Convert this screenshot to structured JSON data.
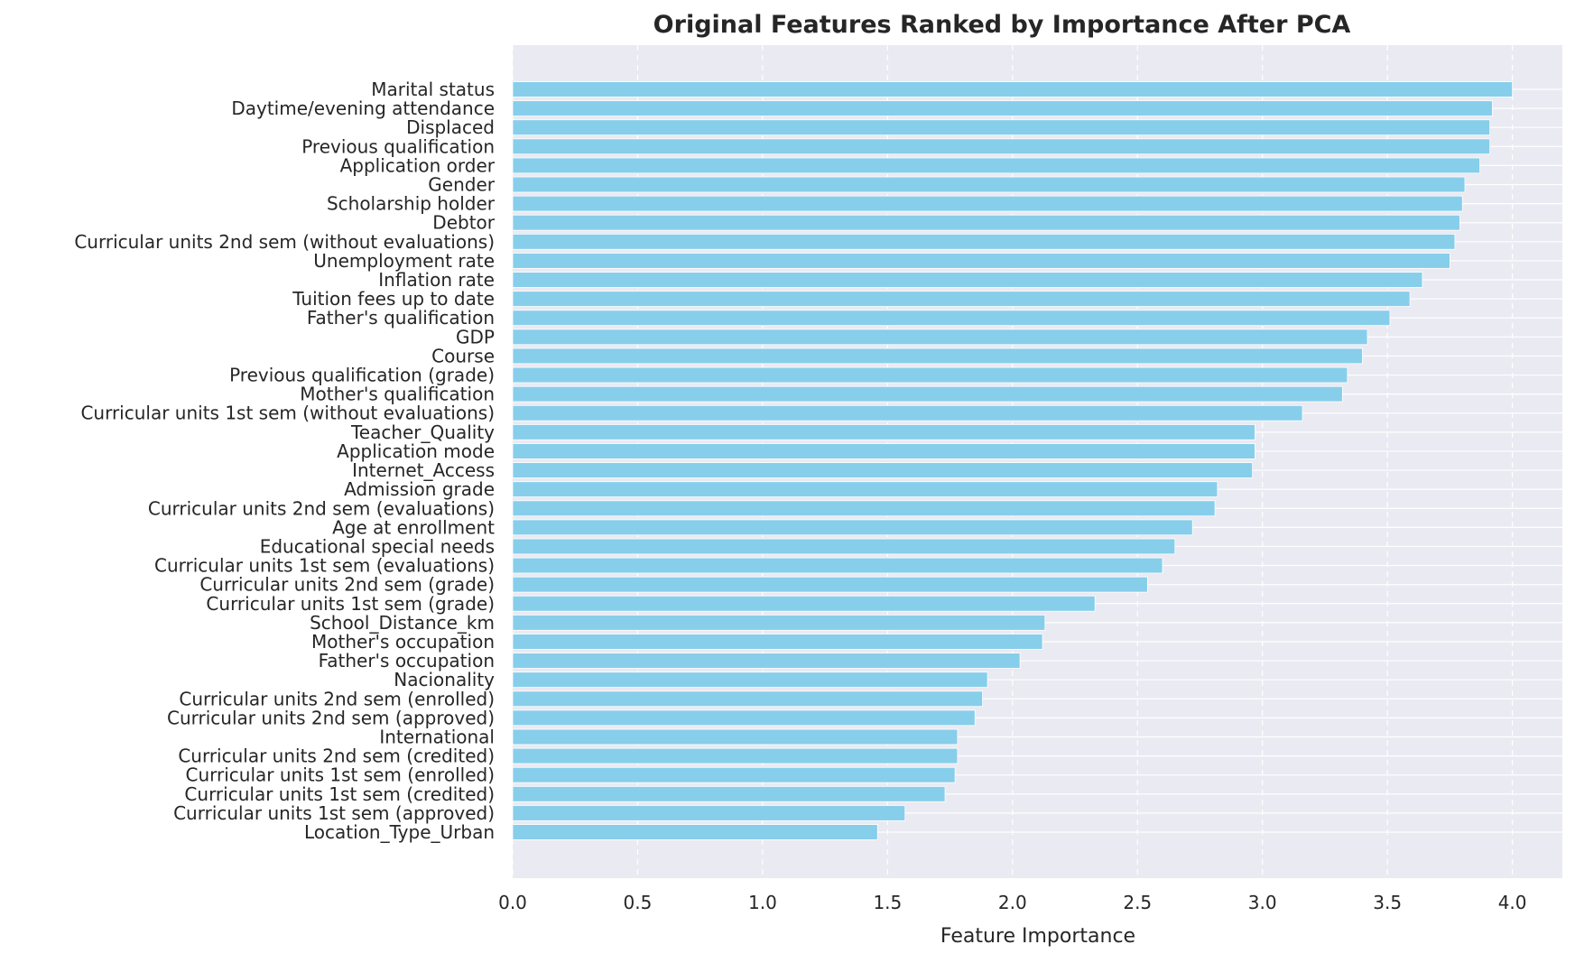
{
  "chart_data": {
    "type": "bar",
    "orientation": "horizontal",
    "title": "Original Features Ranked by Importance After PCA",
    "xlabel": "Feature Importance",
    "ylabel": "",
    "xlim": [
      0,
      4.2
    ],
    "xticks": [
      "0.0",
      "0.5",
      "1.0",
      "1.5",
      "2.0",
      "2.5",
      "3.0",
      "3.5",
      "4.0"
    ],
    "grid": true,
    "bar_color": "#87CEEB",
    "background_color": "#EAEAF2",
    "categories": [
      "Marital status",
      "Daytime/evening attendance\t",
      "Displaced",
      "Previous qualification",
      "Application order",
      "Gender",
      "Scholarship holder",
      "Debtor",
      "Curricular units 2nd sem (without evaluations)",
      "Unemployment rate",
      "Inflation rate",
      "Tuition fees up to date",
      "Father's qualification",
      "GDP",
      "Course",
      "Previous qualification (grade)",
      "Mother's qualification",
      "Curricular units 1st sem (without evaluations)",
      "Teacher_Quality",
      "Application mode",
      "Internet_Access",
      "Admission grade",
      "Curricular units 2nd sem (evaluations)",
      "Age at enrollment",
      "Educational special needs",
      "Curricular units 1st sem (evaluations)",
      "Curricular units 2nd sem (grade)",
      "Curricular units 1st sem (grade)",
      "School_Distance_km",
      "Mother's occupation",
      "Father's occupation",
      "Nacionality",
      "Curricular units 2nd sem (enrolled)",
      "Curricular units 2nd sem (approved)",
      "International",
      "Curricular units 2nd sem (credited)",
      "Curricular units 1st sem (enrolled)",
      "Curricular units 1st sem (credited)",
      "Curricular units 1st sem (approved)",
      "Location_Type_Urban"
    ],
    "values": [
      4.0,
      3.92,
      3.91,
      3.91,
      3.87,
      3.81,
      3.8,
      3.79,
      3.77,
      3.75,
      3.64,
      3.59,
      3.51,
      3.42,
      3.4,
      3.34,
      3.32,
      3.16,
      2.97,
      2.97,
      2.96,
      2.82,
      2.81,
      2.72,
      2.65,
      2.6,
      2.54,
      2.33,
      2.13,
      2.12,
      2.03,
      1.9,
      1.88,
      1.85,
      1.78,
      1.78,
      1.77,
      1.73,
      1.57,
      1.46
    ]
  }
}
